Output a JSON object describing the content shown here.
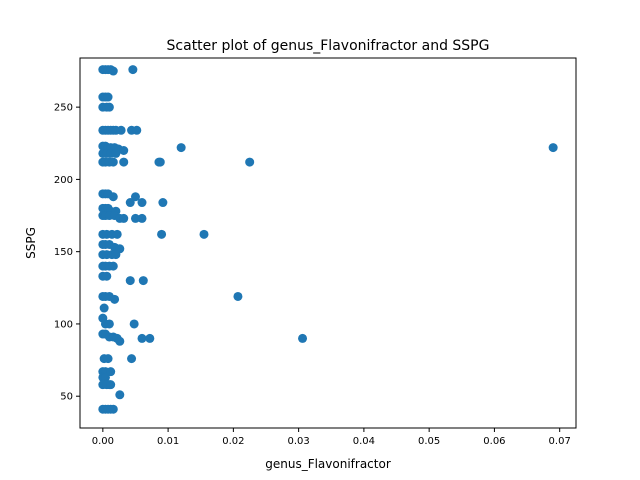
{
  "chart_data": {
    "type": "scatter",
    "title": "Scatter plot of genus_Flavonifractor and SSPG",
    "xlabel": "genus_Flavonifractor",
    "ylabel": "SSPG",
    "xlim": [
      -0.0035,
      0.0725
    ],
    "ylim": [
      28,
      284
    ],
    "xticks": [
      0.0,
      0.01,
      0.02,
      0.03,
      0.04,
      0.05,
      0.06,
      0.07
    ],
    "xtick_labels": [
      "0.00",
      "0.01",
      "0.02",
      "0.03",
      "0.04",
      "0.05",
      "0.06",
      "0.07"
    ],
    "yticks": [
      50,
      100,
      150,
      200,
      250
    ],
    "ytick_labels": [
      "50",
      "100",
      "150",
      "200",
      "250"
    ],
    "grid": false,
    "marker_color": "#1f77b4",
    "x": [
      0.0,
      0.0004,
      0.0008,
      0.0012,
      0.0016,
      0.0046,
      0.0,
      0.0004,
      0.0008,
      0.0,
      0.0006,
      0.001,
      0.0,
      0.0004,
      0.0008,
      0.0012,
      0.0016,
      0.002,
      0.0028,
      0.0044,
      0.0052,
      0.0,
      0.0004,
      0.0008,
      0.0012,
      0.0018,
      0.0024,
      0.0032,
      0.012,
      0.0,
      0.0006,
      0.0012,
      0.002,
      0.0088,
      0.0,
      0.0004,
      0.001,
      0.0016,
      0.0032,
      0.0086,
      0.0225,
      0.0,
      0.0004,
      0.0008,
      0.0016,
      0.005,
      0.0,
      0.0004,
      0.0008,
      0.0012,
      0.002,
      0.0042,
      0.006,
      0.0092,
      0.0,
      0.0004,
      0.001,
      0.0018,
      0.0026,
      0.0032,
      0.005,
      0.006,
      0.0155,
      0.0,
      0.0006,
      0.0014,
      0.0022,
      0.0,
      0.0004,
      0.001,
      0.0018,
      0.0026,
      0.009,
      0.0,
      0.0006,
      0.0014,
      0.002,
      0.0,
      0.0004,
      0.001,
      0.0016,
      0.0042,
      0.0062,
      0.0,
      0.0006,
      0.0,
      0.0004,
      0.001,
      0.0018,
      0.0207,
      0.0002,
      0.0,
      0.0004,
      0.001,
      0.0048,
      0.0,
      0.0004,
      0.001,
      0.0016,
      0.0022,
      0.0026,
      0.006,
      0.0072,
      0.0306,
      0.0002,
      0.0008,
      0.0,
      0.0004,
      0.0012,
      0.0044,
      0.0,
      0.0004,
      0.001,
      0.0,
      0.0006,
      0.0012,
      0.0026,
      0.0,
      0.0004,
      0.0008,
      0.0012,
      0.0016,
      0.069
    ],
    "y": [
      276,
      276,
      276,
      276,
      275,
      276,
      257,
      257,
      257,
      250,
      250,
      250,
      234,
      234,
      234,
      234,
      234,
      234,
      234,
      234,
      234,
      223,
      223,
      222,
      222,
      222,
      221,
      220,
      222,
      218,
      218,
      218,
      218,
      212,
      212,
      212,
      212,
      212,
      212,
      212,
      212,
      190,
      190,
      190,
      188,
      188,
      180,
      180,
      180,
      178,
      178,
      184,
      184,
      184,
      175,
      175,
      175,
      175,
      173,
      173,
      173,
      173,
      162,
      162,
      162,
      162,
      162,
      155,
      155,
      155,
      153,
      152,
      162,
      148,
      148,
      148,
      148,
      140,
      140,
      140,
      140,
      130,
      130,
      133,
      133,
      119,
      119,
      119,
      117,
      119,
      111,
      104,
      100,
      100,
      100,
      93,
      93,
      91,
      91,
      90,
      88,
      90,
      90,
      90,
      76,
      76,
      67,
      67,
      67,
      76,
      63,
      63,
      58,
      58,
      58,
      58,
      51,
      41,
      41,
      41,
      41,
      41,
      222
    ]
  }
}
